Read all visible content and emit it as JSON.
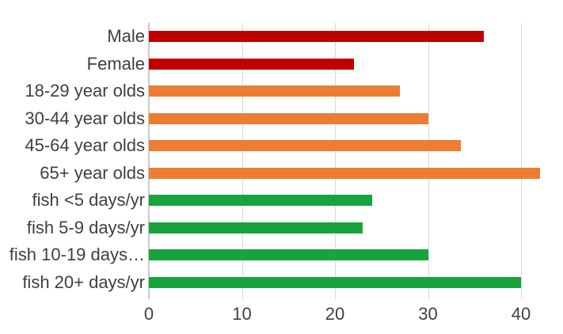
{
  "chart_data": {
    "type": "bar",
    "orientation": "horizontal",
    "title": "",
    "xlabel": "",
    "ylabel": "",
    "categories": [
      "Male",
      "Female",
      "18-29 year olds",
      "30-44 year olds",
      "45-64 year olds",
      "65+ year olds",
      "fish <5 days/yr",
      "fish 5-9 days/yr",
      "fish 10-19 days…",
      "fish 20+ days/yr"
    ],
    "values": [
      36,
      22,
      27,
      30,
      33.5,
      42,
      24,
      23,
      30,
      40
    ],
    "bar_colors": [
      "#c00000",
      "#c00000",
      "#ed7d31",
      "#ed7d31",
      "#ed7d31",
      "#ed7d31",
      "#18a43c",
      "#18a43c",
      "#18a43c",
      "#18a43c"
    ],
    "group_colors": {
      "gender": "#c00000",
      "age": "#ed7d31",
      "fish_frequency": "#18a43c"
    },
    "x_ticks": [
      0,
      10,
      20,
      30,
      40
    ],
    "xlim": [
      0,
      43.5
    ],
    "grid": "vertical",
    "legend": "none",
    "gridline_color": "#d9d9d9",
    "axis_line_color": "#c9c9c9",
    "text_color": "#3f3f3f",
    "background": "#ffffff"
  }
}
